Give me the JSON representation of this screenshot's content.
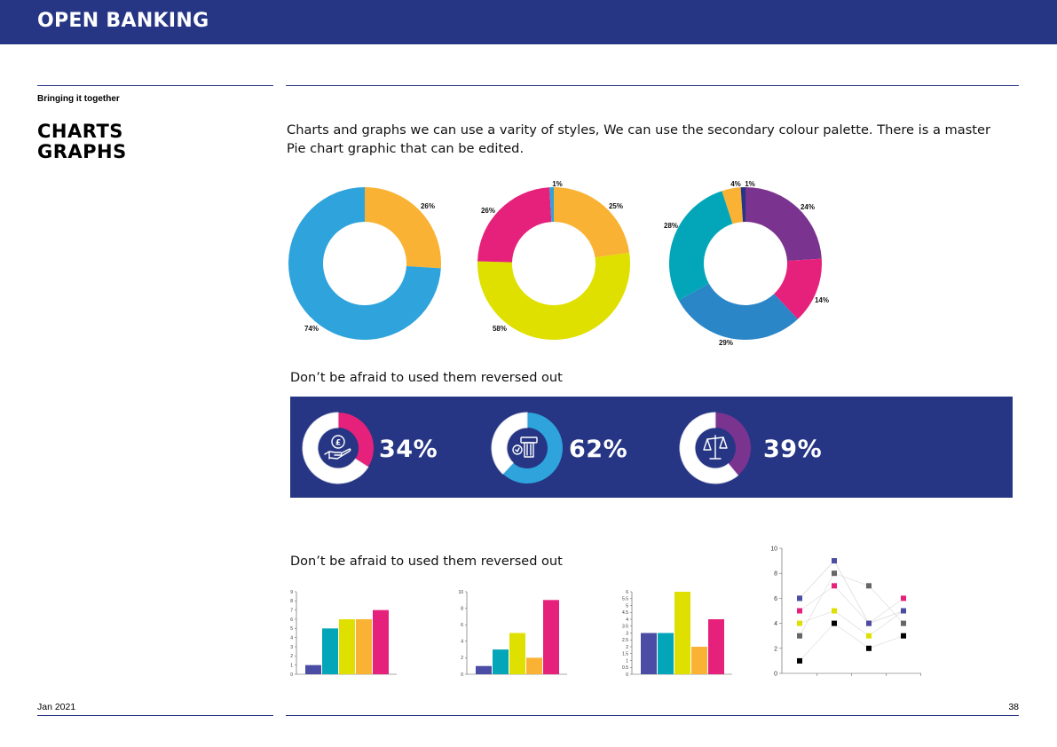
{
  "header": {
    "brand": "OPEN BANKING"
  },
  "sidebar": {
    "section_label": "Bringing it together",
    "title_line1": "CHARTS",
    "title_line2": "GRAPHS"
  },
  "intro": {
    "text": "Charts and graphs we can use a varity of styles, We can use the secondary colour palette. There is a master Pie chart graphic that can be edited."
  },
  "reversed_heading": "Don’t be afraid to used them reversed out",
  "bars_heading": "Don’t be afraid to used them reversed out",
  "colors": {
    "navy": "#263684",
    "orange": "#f9b233",
    "blue": "#2ea3dc",
    "magenta": "#e6217b",
    "yellow": "#dfe000",
    "purple": "#7b3390",
    "teal": "#03a6b9",
    "indigo": "#4b4da4",
    "white": "#ffffff"
  },
  "chart_data": [
    {
      "type": "pie",
      "donut": true,
      "slices": [
        {
          "label": "26%",
          "value": 26,
          "color": "#f9b233"
        },
        {
          "label": "74%",
          "value": 74,
          "color": "#2ea3dc"
        }
      ]
    },
    {
      "type": "pie",
      "donut": true,
      "slices": [
        {
          "label": "25%",
          "value": 25,
          "color": "#f9b233"
        },
        {
          "label": "58%",
          "value": 58,
          "color": "#dfe000"
        },
        {
          "label": "26%",
          "value": 26,
          "color": "#e6217b"
        },
        {
          "label": "1%",
          "value": 1,
          "color": "#2ea3dc"
        }
      ]
    },
    {
      "type": "pie",
      "donut": true,
      "slices": [
        {
          "label": "24%",
          "value": 24,
          "color": "#7b3390"
        },
        {
          "label": "14%",
          "value": 14,
          "color": "#e6217b"
        },
        {
          "label": "29%",
          "value": 29,
          "color": "#2b86c8"
        },
        {
          "label": "28%",
          "value": 28,
          "color": "#03a6b9"
        },
        {
          "label": "4%",
          "value": 4,
          "color": "#f9b233"
        },
        {
          "label": "1%",
          "value": 1,
          "color": "#263684"
        }
      ]
    },
    {
      "type": "pie",
      "donut": true,
      "slices": [
        {
          "label": "34%",
          "value": 34,
          "color": "#e6217b"
        },
        {
          "label": "",
          "value": 66,
          "color": "#ffffff"
        }
      ]
    },
    {
      "type": "pie",
      "donut": true,
      "slices": [
        {
          "label": "62%",
          "value": 62,
          "color": "#2ea3dc"
        },
        {
          "label": "",
          "value": 38,
          "color": "#ffffff"
        }
      ]
    },
    {
      "type": "pie",
      "donut": true,
      "slices": [
        {
          "label": "39%",
          "value": 39,
          "color": "#7b3390"
        },
        {
          "label": "",
          "value": 61,
          "color": "#ffffff"
        }
      ]
    },
    {
      "type": "bar",
      "ylim": [
        0,
        9
      ],
      "yticks": [
        "0",
        "1",
        "2",
        "3",
        "4",
        "5",
        "6",
        "7",
        "8",
        "9"
      ],
      "values": [
        1,
        5,
        6,
        6,
        7
      ],
      "colors": [
        "#4b4da4",
        "#03a6b9",
        "#dfe000",
        "#f9b233",
        "#e6217b"
      ]
    },
    {
      "type": "bar",
      "ylim": [
        0,
        10
      ],
      "yticks": [
        "0",
        "2",
        "4",
        "6",
        "8",
        "10"
      ],
      "values": [
        1,
        3,
        5,
        2,
        9
      ],
      "colors": [
        "#4b4da4",
        "#03a6b9",
        "#dfe000",
        "#f9b233",
        "#e6217b"
      ]
    },
    {
      "type": "bar",
      "ylim": [
        0,
        6
      ],
      "yticks": [
        "0",
        "0.5",
        "1",
        "1.5",
        "2",
        "2.5",
        "3",
        "3.5",
        "4",
        "4.5",
        "5",
        "5.5",
        "6"
      ],
      "values": [
        3,
        3,
        6,
        2,
        4
      ],
      "colors": [
        "#4b4da4",
        "#03a6b9",
        "#dfe000",
        "#f9b233",
        "#e6217b"
      ]
    },
    {
      "type": "scatter",
      "ylim": [
        0,
        10
      ],
      "yticks": [
        "0",
        "2",
        "4",
        "6",
        "8",
        "10"
      ],
      "x": [
        1,
        2,
        3,
        4
      ],
      "series": [
        {
          "values": [
            1,
            4,
            2,
            3
          ],
          "color": "#000000"
        },
        {
          "values": [
            3,
            8,
            7,
            4
          ],
          "color": "#666666"
        },
        {
          "values": [
            4,
            5,
            3,
            5
          ],
          "color": "#dfe000"
        },
        {
          "values": [
            5,
            7,
            4,
            6
          ],
          "color": "#e6217b"
        },
        {
          "values": [
            6,
            9,
            4,
            5
          ],
          "color": "#aaaaaa"
        },
        {
          "values": [
            6,
            9,
            4,
            5
          ],
          "color": "#4b4da4"
        }
      ]
    }
  ],
  "footer": {
    "date": "Jan 2021",
    "page": "38"
  }
}
